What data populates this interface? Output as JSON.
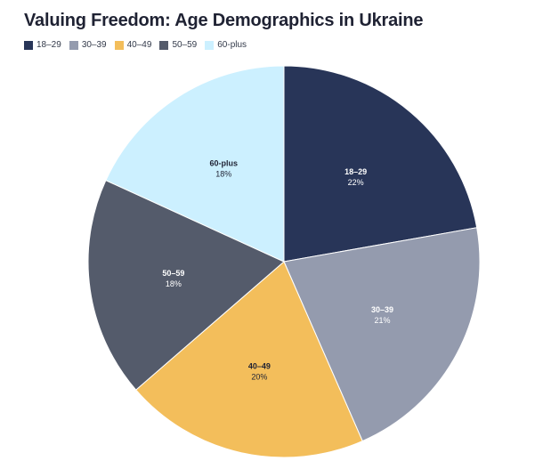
{
  "title": "Valuing Freedom: Age Demographics in Ukraine",
  "chart_data": {
    "type": "pie",
    "title": "Valuing Freedom: Age Demographics in Ukraine",
    "categories": [
      "18–29",
      "30–39",
      "40–49",
      "50–59",
      "60-plus"
    ],
    "values": [
      22,
      21,
      20,
      18,
      18
    ],
    "value_labels": [
      "22%",
      "21%",
      "20%",
      "18%",
      "18%"
    ],
    "colors": [
      "#283558",
      "#949bae",
      "#f3be5b",
      "#545b6b",
      "#ccf0ff"
    ],
    "label_colors": [
      "#ffffff",
      "#ffffff",
      "#1f2233",
      "#ffffff",
      "#1f2233"
    ],
    "start_angle": "12 o'clock",
    "direction": "clockwise",
    "legend_position": "top-left"
  }
}
